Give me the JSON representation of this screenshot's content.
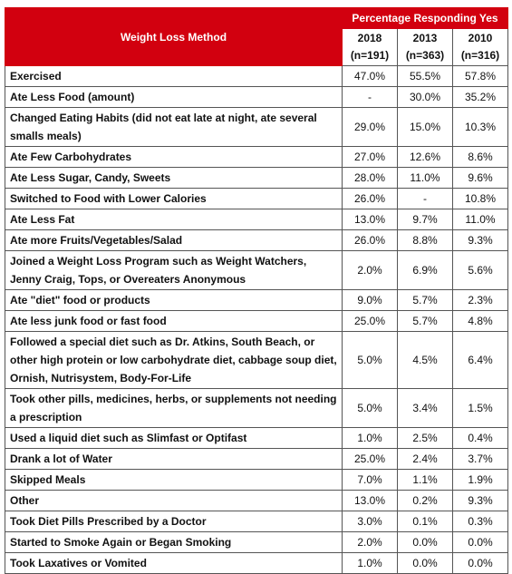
{
  "table": {
    "header": {
      "method": "Weight Loss Method",
      "group": "Percentage Responding Yes",
      "columns": [
        {
          "year": "2018",
          "n": "(n=191)"
        },
        {
          "year": "2013",
          "n": "(n=363)"
        },
        {
          "year": "2010",
          "n": "(n=316)"
        }
      ]
    },
    "rows": [
      [
        "Exercised",
        "47.0%",
        "55.5%",
        "57.8%"
      ],
      [
        "Ate Less Food (amount)",
        "-",
        "30.0%",
        "35.2%"
      ],
      [
        "Changed Eating Habits (did not eat late at night, ate several smalls meals)",
        "29.0%",
        "15.0%",
        "10.3%"
      ],
      [
        "Ate Few Carbohydrates",
        "27.0%",
        "12.6%",
        "8.6%"
      ],
      [
        "Ate Less Sugar, Candy, Sweets",
        "28.0%",
        "11.0%",
        "9.6%"
      ],
      [
        "Switched to Food with Lower Calories",
        "26.0%",
        "-",
        "10.8%"
      ],
      [
        "Ate Less Fat",
        "13.0%",
        "9.7%",
        "11.0%"
      ],
      [
        "Ate more Fruits/Vegetables/Salad",
        "26.0%",
        "8.8%",
        "9.3%"
      ],
      [
        "Joined a Weight Loss Program such as Weight Watchers, Jenny Craig, Tops, or Overeaters Anonymous",
        "2.0%",
        "6.9%",
        "5.6%"
      ],
      [
        "Ate \"diet\" food or products",
        "9.0%",
        "5.7%",
        "2.3%"
      ],
      [
        "Ate less junk food or fast food",
        "25.0%",
        "5.7%",
        "4.8%"
      ],
      [
        "Followed a special diet such as Dr. Atkins, South Beach, or other high protein or low carbohydrate diet, cabbage soup diet, Ornish, Nutrisystem, Body-For-Life",
        "5.0%",
        "4.5%",
        "6.4%"
      ],
      [
        "Took other pills, medicines, herbs, or supplements not needing a prescription",
        "5.0%",
        "3.4%",
        "1.5%"
      ],
      [
        "Used a liquid diet such as Slimfast or Optifast",
        "1.0%",
        "2.5%",
        "0.4%"
      ],
      [
        "Drank a lot of Water",
        "25.0%",
        "2.4%",
        "3.7%"
      ],
      [
        "Skipped Meals",
        "7.0%",
        "1.1%",
        "1.9%"
      ],
      [
        "Other",
        "13.0%",
        "0.2%",
        "9.3%"
      ],
      [
        "Took Diet Pills Prescribed by a Doctor",
        "3.0%",
        "0.1%",
        "0.3%"
      ],
      [
        "Started to Smoke Again or Began Smoking",
        "2.0%",
        "0.0%",
        "0.0%"
      ],
      [
        "Took Laxatives or Vomited",
        "1.0%",
        "0.0%",
        "0.0%"
      ]
    ]
  }
}
